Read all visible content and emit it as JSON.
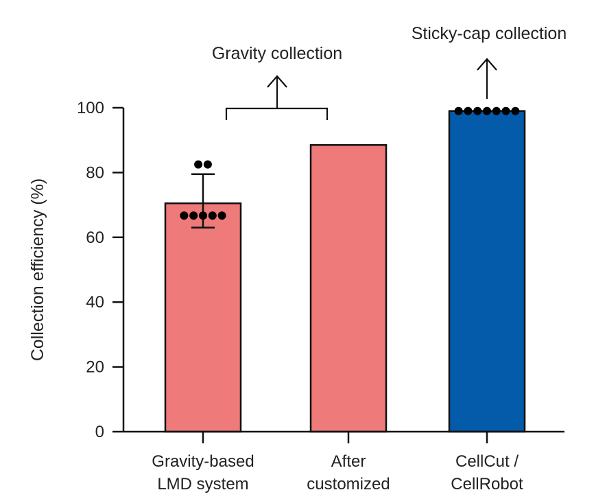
{
  "chart_data": {
    "type": "bar",
    "title": "",
    "xlabel": "",
    "ylabel": "Collection efficiency (%)",
    "ylim": [
      0,
      100
    ],
    "yticks": [
      "0",
      "20",
      "40",
      "60",
      "80",
      "100"
    ],
    "categories": [
      [
        "Gravity-based",
        "LMD system"
      ],
      [
        "After",
        "customized"
      ],
      [
        "CellCut /",
        "CellRobot"
      ]
    ],
    "values": [
      70.5,
      88.5,
      99
    ],
    "error": [
      {
        "low": 63,
        "high": 79.5
      },
      null,
      null
    ],
    "points": [
      [
        82.5,
        82.5,
        66.7,
        66.7,
        66.7,
        66.7,
        66.7
      ],
      [],
      [
        99,
        99,
        99,
        99,
        99,
        99,
        99
      ]
    ],
    "colors": [
      "#ee7a79",
      "#ee7a79",
      "#045ba9"
    ],
    "grid": false,
    "annotations": {
      "gravity": "Gravity collection",
      "sticky": "Sticky-cap collection"
    }
  }
}
